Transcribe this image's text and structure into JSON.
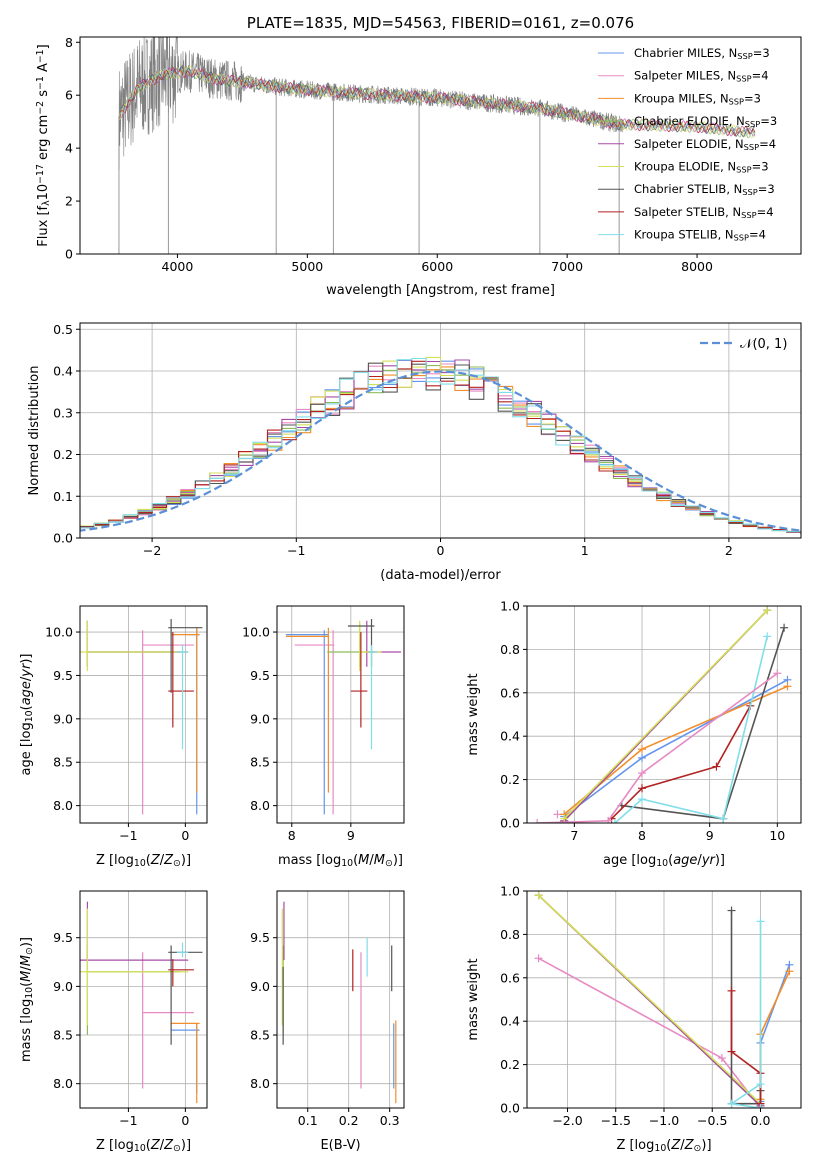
{
  "series_styles": [
    {
      "name": "Chabrier MILES",
      "nssp": "3",
      "color": "#6495ed"
    },
    {
      "name": "Salpeter MILES",
      "nssp": "4",
      "color": "#e78ac3"
    },
    {
      "name": "Kroupa MILES",
      "nssp": "3",
      "color": "#f28e2b"
    },
    {
      "name": "Chabrier ELODIE",
      "nssp": "3",
      "color": "#8fbc5a"
    },
    {
      "name": "Salpeter ELODIE",
      "nssp": "4",
      "color": "#a64ca6"
    },
    {
      "name": "Kroupa ELODIE",
      "nssp": "3",
      "color": "#d4e157"
    },
    {
      "name": "Chabrier STELIB",
      "nssp": "3",
      "color": "#555555"
    },
    {
      "name": "Salpeter STELIB",
      "nssp": "4",
      "color": "#b22222"
    },
    {
      "name": "Kroupa STELIB",
      "nssp": "4",
      "color": "#80deea"
    }
  ],
  "chart_data": [
    {
      "id": "spectrum",
      "type": "line",
      "title": "PLATE=1835, MJD=54563, FIBERID=0161, z=0.076",
      "xlabel": "wavelength [Angstrom, rest frame]",
      "ylabel": "Flux [f_λ10^-17 erg cm^-2 s^-1 A^-1]",
      "xlim": [
        3250,
        8800
      ],
      "ylim": [
        0,
        8.2
      ],
      "xticks": [
        4000,
        5000,
        6000,
        7000,
        8000
      ],
      "yticks": [
        0,
        2,
        4,
        6,
        8
      ],
      "legend_position": "top-right",
      "legend": [
        "Chabrier MILES, N_SSP=3",
        "Salpeter MILES, N_SSP=4",
        "Kroupa MILES, N_SSP=3",
        "Chabrier ELODIE, N_SSP=3",
        "Salpeter ELODIE, N_SSP=4",
        "Kroupa ELODIE, N_SSP=3",
        "Chabrier STELIB, N_SSP=3",
        "Salpeter STELIB, N_SSP=4",
        "Kroupa STELIB, N_SSP=4"
      ],
      "data_color": "#808080",
      "continuum": {
        "x": [
          3550,
          3700,
          3900,
          4100,
          4300,
          4500,
          4800,
          5000,
          5300,
          5600,
          6000,
          6400,
          6800,
          7000,
          7200,
          7400
        ],
        "y": [
          5.2,
          6.3,
          6.8,
          6.9,
          6.6,
          6.5,
          6.3,
          6.2,
          6.1,
          6.0,
          5.9,
          5.7,
          5.5,
          5.3,
          5.1,
          4.9
        ]
      },
      "model_x": [
        3550,
        3700,
        3900,
        4100,
        4300,
        4500,
        4800,
        5000,
        5300,
        5600,
        6000,
        6400,
        6800,
        7000,
        7200,
        7400,
        8000,
        8400
      ],
      "model_y": [
        5.2,
        6.3,
        6.8,
        6.9,
        6.6,
        6.5,
        6.3,
        6.2,
        6.1,
        6.0,
        5.9,
        5.7,
        5.5,
        5.3,
        5.1,
        4.9,
        4.8,
        4.6
      ],
      "grid": false
    },
    {
      "id": "residuals",
      "type": "histogram",
      "xlabel": "(data-model)/error",
      "ylabel": "Normed distribution",
      "xlim": [
        -2.5,
        2.5
      ],
      "ylim": [
        0,
        0.515
      ],
      "xticks": [
        -2,
        -1,
        0,
        1,
        2
      ],
      "yticks": [
        0.0,
        0.1,
        0.2,
        0.3,
        0.4,
        0.5
      ],
      "legend": "𝒩(0, 1)",
      "legend_position": "top-right",
      "bin_width": 0.1,
      "gaussian": {
        "mu": 0,
        "sigma": 1
      },
      "grid": true
    },
    {
      "id": "age-vs-Z",
      "type": "errorbar",
      "xlabel": "Z [log10(Z/Z⊙)]",
      "ylabel": "age [log10(age/yr)]",
      "xlim": [
        -1.85,
        0.38
      ],
      "ylim": [
        7.8,
        10.3
      ],
      "xticks": [
        -1,
        0
      ],
      "yticks": [
        8.0,
        8.5,
        9.0,
        9.5,
        10.0
      ],
      "points": [
        {
          "s": 0,
          "x": 0.2,
          "xl": 0.05,
          "xh": 0.25,
          "y": 9.97,
          "yl": 7.9,
          "yh": 10.05
        },
        {
          "s": 1,
          "x": -0.75,
          "xl": -0.75,
          "xh": 0.15,
          "y": 9.85,
          "yl": 7.9,
          "yh": 10.02
        },
        {
          "s": 2,
          "x": 0.2,
          "xl": -0.25,
          "xh": 0.25,
          "y": 9.97,
          "yl": 8.15,
          "yh": 10.05
        },
        {
          "s": 3,
          "x": -1.72,
          "xl": -1.72,
          "xh": -0.1,
          "y": 9.77,
          "yl": 9.6,
          "yh": 10.13
        },
        {
          "s": 4,
          "x": -1.72,
          "xl": -1.72,
          "xh": 0.05,
          "y": 9.77,
          "yl": 9.6,
          "yh": 10.13
        },
        {
          "s": 5,
          "x": -1.72,
          "xl": -1.85,
          "xh": 0.05,
          "y": 9.77,
          "yl": 9.55,
          "yh": 10.13
        },
        {
          "s": 6,
          "x": -0.25,
          "xl": -0.3,
          "xh": 0.3,
          "y": 10.05,
          "yl": 9.3,
          "yh": 10.15
        },
        {
          "s": 7,
          "x": -0.22,
          "xl": -0.3,
          "xh": 0.15,
          "y": 9.32,
          "yl": 8.9,
          "yh": 10.0
        },
        {
          "s": 8,
          "x": -0.05,
          "xl": -0.15,
          "xh": 0.05,
          "y": 9.77,
          "yl": 8.65,
          "yh": 9.85
        }
      ],
      "grid": true
    },
    {
      "id": "age-vs-mass",
      "type": "errorbar",
      "xlabel": "mass [log10(M/M⊙)]",
      "ylabel": "",
      "xlim": [
        7.75,
        9.9
      ],
      "ylim": [
        7.8,
        10.3
      ],
      "xticks": [
        8,
        9
      ],
      "yticks": [
        8.0,
        8.5,
        9.0,
        9.5,
        10.0
      ],
      "points": [
        {
          "s": 0,
          "x": 8.55,
          "xl": 7.9,
          "xh": 8.62,
          "y": 9.97,
          "yl": 7.9,
          "yh": 10.02
        },
        {
          "s": 1,
          "x": 8.7,
          "xl": 8.05,
          "xh": 8.72,
          "y": 9.85,
          "yl": 7.9,
          "yh": 10.02
        },
        {
          "s": 2,
          "x": 8.62,
          "xl": 7.9,
          "xh": 8.62,
          "y": 9.95,
          "yl": 8.15,
          "yh": 10.05
        },
        {
          "s": 3,
          "x": 9.15,
          "xl": 8.6,
          "xh": 9.42,
          "y": 9.77,
          "yl": 9.6,
          "yh": 10.1
        },
        {
          "s": 4,
          "x": 9.27,
          "xl": 9.27,
          "xh": 9.85,
          "y": 9.77,
          "yl": 9.6,
          "yh": 10.13
        },
        {
          "s": 5,
          "x": 9.15,
          "xl": 9.15,
          "xh": 9.52,
          "y": 9.77,
          "yl": 9.55,
          "yh": 10.13
        },
        {
          "s": 6,
          "x": 9.35,
          "xl": 8.95,
          "xh": 9.4,
          "y": 10.07,
          "yl": 9.6,
          "yh": 10.15
        },
        {
          "s": 7,
          "x": 9.17,
          "xl": 9.0,
          "xh": 9.28,
          "y": 9.32,
          "yl": 8.9,
          "yh": 10.0
        },
        {
          "s": 8,
          "x": 9.35,
          "xl": 9.3,
          "xh": 9.45,
          "y": 9.77,
          "yl": 8.65,
          "yh": 9.85
        }
      ],
      "grid": true
    },
    {
      "id": "massweight-vs-age",
      "type": "line",
      "xlabel": "age [log10(age/yr)]",
      "ylabel": "mass weight",
      "xlim": [
        6.3,
        10.35
      ],
      "ylim": [
        0,
        1.0
      ],
      "xticks": [
        7,
        8,
        9,
        10
      ],
      "yticks": [
        0.0,
        0.2,
        0.4,
        0.6,
        0.8,
        1.0
      ],
      "series": [
        {
          "s": 0,
          "x": [
            6.85,
            8.0,
            10.15
          ],
          "y": [
            0.03,
            0.3,
            0.66
          ]
        },
        {
          "s": 1,
          "x": 6.75,
          "y": 0.04
        },
        {
          "s": 2,
          "x": [
            6.85,
            8.0,
            10.15
          ],
          "y": [
            0.04,
            0.34,
            0.63
          ]
        },
        {
          "s": 3,
          "x": [
            6.85,
            9.85
          ],
          "y": [
            0.01,
            0.98
          ]
        },
        {
          "s": 4,
          "x": [
            6.85,
            9.85
          ],
          "y": [
            0.01,
            0.98
          ]
        },
        {
          "s": 5,
          "x": [
            6.85,
            9.85
          ],
          "y": [
            0.02,
            0.98
          ]
        },
        {
          "s": 6,
          "x": [
            7.7,
            9.2,
            10.1
          ],
          "y": [
            0.08,
            0.02,
            0.9
          ]
        },
        {
          "s": 7,
          "x": [
            7.55,
            8.0,
            9.1,
            9.6
          ],
          "y": [
            0.02,
            0.16,
            0.26,
            0.54
          ]
        },
        {
          "s": 8,
          "x": [
            7.6,
            8.0,
            9.2,
            9.85
          ],
          "y": [
            0.0,
            0.11,
            0.02,
            0.86
          ]
        }
      ],
      "extra": [
        {
          "s": 1,
          "x": [
            6.45,
            7.5,
            8.0,
            10.0
          ],
          "y": [
            0.0,
            0.01,
            0.23,
            0.69
          ]
        }
      ],
      "grid": true
    },
    {
      "id": "mass-vs-Z",
      "type": "errorbar",
      "xlabel": "Z [log10(Z/Z⊙)]",
      "ylabel": "mass [log10(M/M⊙)]",
      "xlim": [
        -1.85,
        0.38
      ],
      "ylim": [
        7.75,
        9.98
      ],
      "xticks": [
        -1,
        0
      ],
      "yticks": [
        8.0,
        8.5,
        9.0,
        9.5
      ],
      "points": [
        {
          "s": 0,
          "x": 0.2,
          "xl": -0.25,
          "xh": 0.25,
          "y": 8.55,
          "yl": 7.9,
          "yh": 8.62
        },
        {
          "s": 1,
          "x": -0.75,
          "xl": -0.75,
          "xh": 0.15,
          "y": 8.73,
          "yl": 7.95,
          "yh": 9.35
        },
        {
          "s": 2,
          "x": 0.2,
          "xl": -0.25,
          "xh": 0.25,
          "y": 8.62,
          "yl": 7.8,
          "yh": 8.62
        },
        {
          "s": 3,
          "x": -1.72,
          "xl": -1.72,
          "xh": -0.1,
          "y": 9.15,
          "yl": 8.5,
          "yh": 9.42
        },
        {
          "s": 4,
          "x": -1.72,
          "xl": -1.85,
          "xh": 0.05,
          "y": 9.27,
          "yl": 9.27,
          "yh": 9.87
        },
        {
          "s": 5,
          "x": -1.72,
          "xl": -1.85,
          "xh": 0.05,
          "y": 9.15,
          "yl": 8.6,
          "yh": 9.8
        },
        {
          "s": 6,
          "x": -0.25,
          "xl": -0.3,
          "xh": 0.3,
          "y": 9.35,
          "yl": 8.4,
          "yh": 9.42
        },
        {
          "s": 7,
          "x": -0.22,
          "xl": -0.3,
          "xh": 0.15,
          "y": 9.17,
          "yl": 9.0,
          "yh": 9.28
        },
        {
          "s": 8,
          "x": -0.05,
          "xl": -0.15,
          "xh": 0.05,
          "y": 9.35,
          "yl": 9.3,
          "yh": 9.45
        }
      ],
      "grid": true
    },
    {
      "id": "mass-vs-EBV",
      "type": "errorbar",
      "xlabel": "E(B-V)",
      "ylabel": "",
      "xlim": [
        0.025,
        0.335
      ],
      "ylim": [
        7.75,
        9.98
      ],
      "xticks": [
        0.1,
        0.2,
        0.3
      ],
      "yticks": [
        8.0,
        8.5,
        9.0,
        9.5
      ],
      "points": [
        {
          "s": 0,
          "x": 0.31,
          "yl": 7.95,
          "yh": 8.62
        },
        {
          "s": 1,
          "x": 0.23,
          "yl": 7.95,
          "yh": 9.35
        },
        {
          "s": 2,
          "x": 0.315,
          "yl": 7.8,
          "yh": 8.65
        },
        {
          "s": 3,
          "x": 0.04,
          "yl": 8.5,
          "yh": 9.42
        },
        {
          "s": 4,
          "x": 0.042,
          "yl": 9.27,
          "yh": 9.87
        },
        {
          "s": 5,
          "x": 0.038,
          "yl": 8.6,
          "yh": 9.8
        },
        {
          "s": 6,
          "x": 0.305,
          "yl": 8.95,
          "yh": 9.42
        },
        {
          "s": 7,
          "x": 0.21,
          "yl": 8.95,
          "yh": 9.38
        },
        {
          "s": 8,
          "x": 0.245,
          "yl": 9.1,
          "yh": 9.5
        }
      ],
      "extra_dark": {
        "x": 0.04,
        "yl": 8.4,
        "yh": 9.2
      },
      "grid": true
    },
    {
      "id": "massweight-vs-Z",
      "type": "line",
      "xlabel": "Z [log10(Z/Z⊙)]",
      "ylabel": "mass weight",
      "xlim": [
        -2.42,
        0.42
      ],
      "ylim": [
        0,
        1.0
      ],
      "xticks": [
        -2.0,
        -1.5,
        -1.0,
        -0.5,
        0.0
      ],
      "yticks": [
        0.0,
        0.2,
        0.4,
        0.6,
        0.8,
        1.0
      ],
      "series": [
        {
          "s": 0,
          "x": [
            0.0,
            0.0,
            0.3
          ],
          "y": [
            0.03,
            0.3,
            0.66
          ]
        },
        {
          "s": 1,
          "x": [
            -2.3,
            -0.4,
            0.0
          ],
          "y": [
            0.69,
            0.23,
            0.0
          ]
        },
        {
          "s": 2,
          "x": [
            0.0,
            0.0,
            0.3
          ],
          "y": [
            0.04,
            0.34,
            0.63
          ]
        },
        {
          "s": 3,
          "x": [
            -2.3,
            0.0
          ],
          "y": [
            0.98,
            0.01
          ]
        },
        {
          "s": 4,
          "x": [
            -2.3,
            0.0
          ],
          "y": [
            0.98,
            0.01
          ]
        },
        {
          "s": 5,
          "x": [
            -2.3,
            0.0
          ],
          "y": [
            0.98,
            0.02
          ]
        },
        {
          "s": 6,
          "x": [
            -0.3,
            -0.3,
            0.0,
            0.0
          ],
          "y": [
            0.91,
            0.02,
            0.02,
            0.08
          ]
        },
        {
          "s": 7,
          "x": [
            -0.3,
            -0.3,
            0.0,
            0.0
          ],
          "y": [
            0.54,
            0.26,
            0.16,
            0.02
          ]
        },
        {
          "s": 8,
          "x": [
            0.0,
            0.0,
            -0.3,
            0.0
          ],
          "y": [
            0.86,
            0.11,
            0.02,
            0.0
          ]
        }
      ],
      "grid": true
    }
  ]
}
